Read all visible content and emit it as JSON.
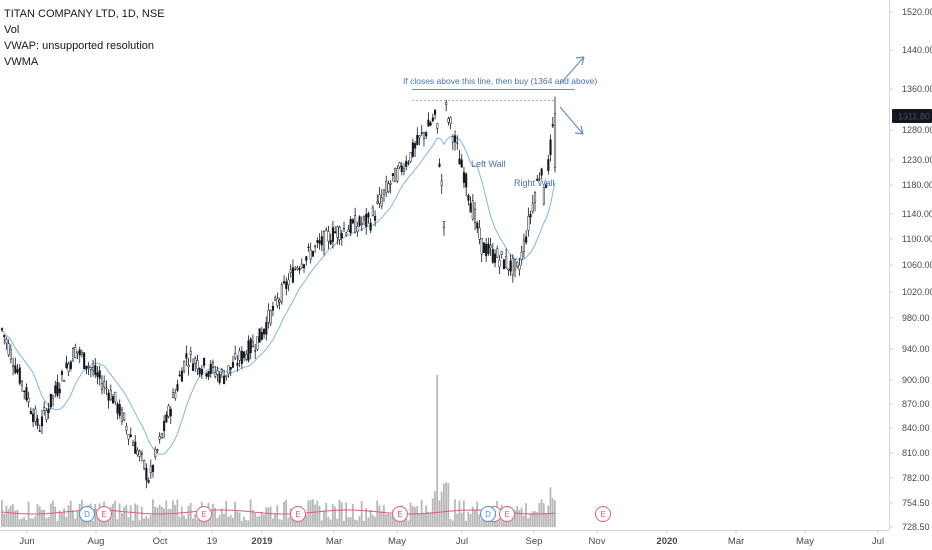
{
  "header": {
    "symbol_line": "TITAN COMPANY LTD, 1D, NSE",
    "indicator_vol": "Vol",
    "indicator_vwap": "VWAP: unsupported resolution",
    "indicator_vwma": "VWMA"
  },
  "annotations": {
    "breakout_note": "If closes above this line, then buy (1364 and above)",
    "left_wall": "Left Wall",
    "right_wall": "Right Wall"
  },
  "colors": {
    "candle": "#131722",
    "vwma_line": "#7fb8e6",
    "annotation_text": "#4a72b0",
    "arrow": "#6b8fbf",
    "volume_bar": "#b7b7b7",
    "volume_ma": "#e05a75",
    "earnings_marker": "#e0607a",
    "dividend_marker": "#4a90e2",
    "price_label_bg": "#131722",
    "price_label_text": "#ffffff"
  },
  "markers": [
    {
      "text": "D",
      "kind": "dividend"
    },
    {
      "text": "E",
      "kind": "earnings"
    },
    {
      "text": "E",
      "kind": "earnings"
    },
    {
      "text": "E",
      "kind": "earnings"
    },
    {
      "text": "E",
      "kind": "earnings"
    },
    {
      "text": "E",
      "kind": "earnings"
    },
    {
      "text": "D",
      "kind": "dividend"
    },
    {
      "text": "E",
      "kind": "earnings"
    },
    {
      "text": "E",
      "kind": "earnings"
    }
  ],
  "chart_data": {
    "type": "candlestick",
    "title": "TITAN COMPANY LTD, 1D, NSE",
    "last_price": "1311.80",
    "breakout_level": 1364,
    "y_axis": {
      "scale": "log",
      "ticks": [
        "1520.00",
        "1440.00",
        "1360.00",
        "1280.00",
        "1230.00",
        "1180.00",
        "1140.00",
        "1100.00",
        "1060.00",
        "1020.00",
        "980.00",
        "940.00",
        "900.00",
        "870.00",
        "840.00",
        "810.00",
        "782.00",
        "754.50",
        "728.50"
      ]
    },
    "x_axis": {
      "ticks": [
        "Jun",
        "Aug",
        "Oct",
        "19",
        "2019",
        "Mar",
        "May",
        "Jul",
        "Sep",
        "Nov",
        "2020",
        "Mar",
        "May",
        "Jul"
      ]
    },
    "price_path_approx": [
      {
        "date": "Jun 2018",
        "close": 965
      },
      {
        "date": "Jul 2018",
        "close": 840
      },
      {
        "date": "Aug 2018",
        "close": 940
      },
      {
        "date": "Sep 2018",
        "close": 880
      },
      {
        "date": "Oct 2018",
        "close": 780
      },
      {
        "date": "Nov 2018",
        "close": 930
      },
      {
        "date": "Dec 2018",
        "close": 905
      },
      {
        "date": "Jan 2019",
        "close": 955
      },
      {
        "date": "Feb 2019",
        "close": 1060
      },
      {
        "date": "Mar 2019",
        "close": 1110
      },
      {
        "date": "Apr 2019",
        "close": 1130
      },
      {
        "date": "May 2019",
        "close": 1230
      },
      {
        "date": "Jun 2019",
        "close": 1330
      },
      {
        "date": "Jul 2019",
        "close": 1090
      },
      {
        "date": "Aug 2019",
        "close": 1050
      },
      {
        "date": "Sep 2019",
        "close": 1311.8
      }
    ]
  }
}
